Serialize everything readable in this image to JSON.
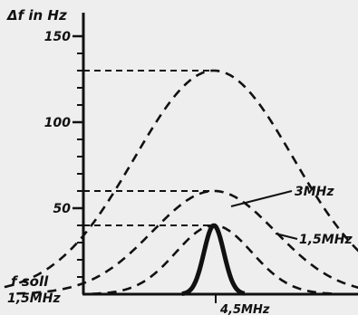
{
  "chart_data": {
    "type": "line",
    "ylabel": "Δf in Hz",
    "xlabel": "f soll 1,5MHz",
    "xlabel_lines": [
      "f soll",
      "1,5MHz"
    ],
    "x_center_label": "4,5MHz",
    "ylim": [
      0,
      155
    ],
    "yticks": [
      50,
      100,
      150
    ],
    "ytick_labels": [
      "50",
      "100",
      "150"
    ],
    "minor_tick_step": 10,
    "grid": false,
    "series": [
      {
        "name": "",
        "peak": 130,
        "style": "dashed"
      },
      {
        "name": "3MHz",
        "peak": 60,
        "style": "dashed"
      },
      {
        "name": "1,5MHz",
        "peak": 40,
        "style": "dashed"
      },
      {
        "name": "",
        "peak": 40,
        "style": "solid"
      }
    ]
  }
}
